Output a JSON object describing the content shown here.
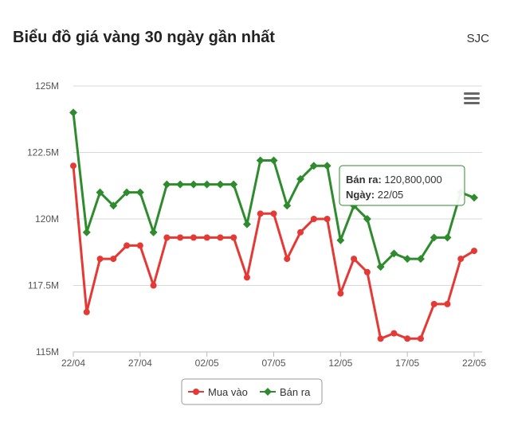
{
  "header": {
    "title": "Biểu đồ giá vàng 30 ngày gần nhất",
    "source": "SJC"
  },
  "menu_icon": "hamburger-menu-icon",
  "chart_data": {
    "type": "line",
    "x": [
      "22/04",
      "23/04",
      "24/04",
      "25/04",
      "26/04",
      "27/04",
      "28/04",
      "29/04",
      "30/04",
      "01/05",
      "02/05",
      "03/05",
      "04/05",
      "05/05",
      "06/05",
      "07/05",
      "08/05",
      "09/05",
      "10/05",
      "11/05",
      "12/05",
      "13/05",
      "14/05",
      "15/05",
      "16/05",
      "17/05",
      "18/05",
      "19/05",
      "20/05",
      "21/05",
      "22/05"
    ],
    "x_tick_labels": [
      "22/04",
      "27/04",
      "02/05",
      "07/05",
      "12/05",
      "17/05",
      "22/05"
    ],
    "y_tick_labels": [
      "125M",
      "122.5M",
      "120M",
      "117.5M",
      "115M"
    ],
    "ylim": [
      115000000,
      125000000
    ],
    "series": [
      {
        "name": "Mua vào",
        "color": "#e53935",
        "values": [
          122000000,
          116500000,
          118500000,
          118500000,
          119000000,
          119000000,
          117500000,
          119300000,
          119300000,
          119300000,
          119300000,
          119300000,
          119300000,
          117800000,
          120200000,
          120200000,
          118500000,
          119500000,
          120000000,
          120000000,
          117200000,
          118500000,
          118000000,
          115500000,
          115700000,
          115500000,
          115500000,
          116800000,
          116800000,
          118500000,
          118800000
        ]
      },
      {
        "name": "Bán ra",
        "color": "#2e8b2e",
        "values": [
          124000000,
          119500000,
          121000000,
          120500000,
          121000000,
          121000000,
          119500000,
          121300000,
          121300000,
          121300000,
          121300000,
          121300000,
          121300000,
          119800000,
          122200000,
          122200000,
          120500000,
          121500000,
          122000000,
          122000000,
          119200000,
          120500000,
          120000000,
          118200000,
          118700000,
          118500000,
          118500000,
          119300000,
          119300000,
          121000000,
          120800000
        ]
      }
    ],
    "grid": true,
    "legend": "bottom-center",
    "tooltip": {
      "series_label": "Bán ra",
      "value_text": "120,800,000",
      "date_label": "Ngày",
      "date_value": "22/05"
    }
  }
}
